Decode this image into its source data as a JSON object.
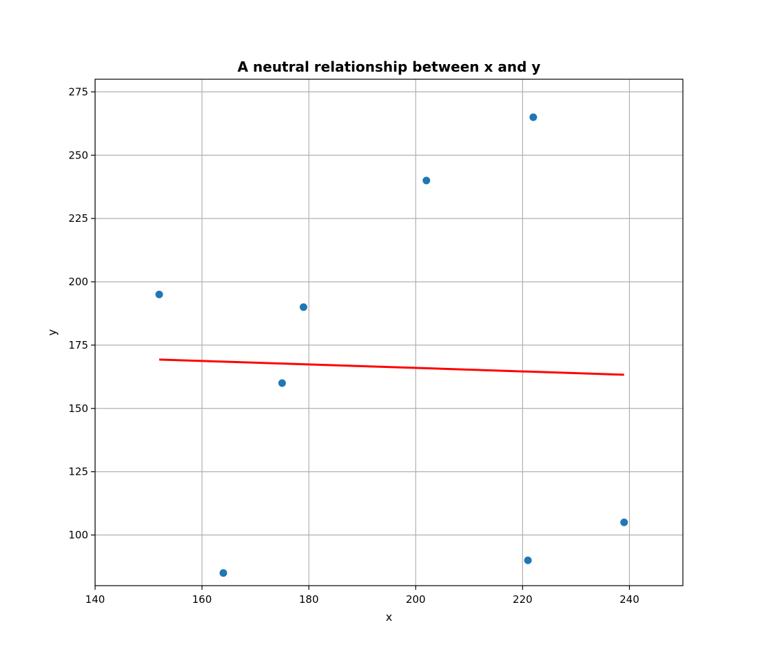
{
  "chart_data": {
    "type": "scatter",
    "title": "A neutral relationship between x and y",
    "xlabel": "x",
    "ylabel": "y",
    "xlim": [
      140,
      250
    ],
    "ylim": [
      80,
      280
    ],
    "xticks": [
      140,
      160,
      180,
      200,
      220,
      240
    ],
    "yticks": [
      100,
      125,
      150,
      175,
      200,
      225,
      250,
      275
    ],
    "grid": true,
    "series": [
      {
        "type": "scatter",
        "color": "#1f77b4",
        "points": [
          {
            "x": 152,
            "y": 195
          },
          {
            "x": 164,
            "y": 85
          },
          {
            "x": 175,
            "y": 160
          },
          {
            "x": 179,
            "y": 190
          },
          {
            "x": 202,
            "y": 240
          },
          {
            "x": 221,
            "y": 90
          },
          {
            "x": 222,
            "y": 265
          },
          {
            "x": 239,
            "y": 105
          }
        ]
      },
      {
        "type": "line",
        "color": "#ff0000",
        "points": [
          {
            "x": 152,
            "y": 169.3
          },
          {
            "x": 239,
            "y": 163.3
          }
        ]
      }
    ]
  }
}
